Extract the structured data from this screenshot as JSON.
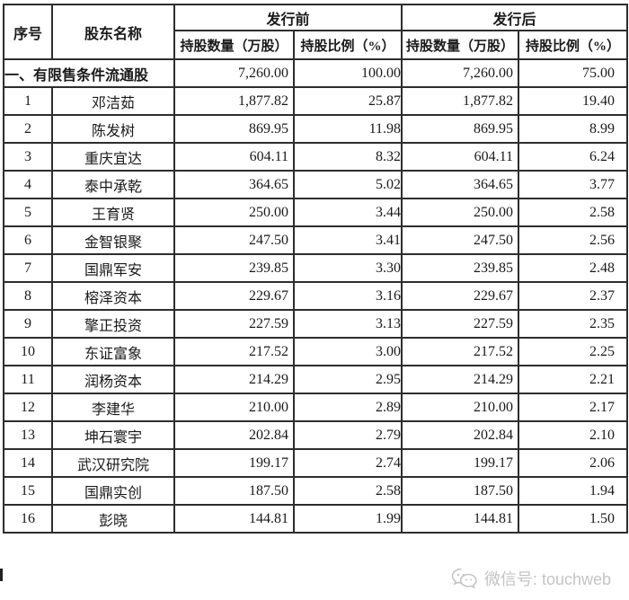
{
  "table": {
    "headers": {
      "index": "序号",
      "shareholder": "股东名称",
      "pre_group": "发行前",
      "post_group": "发行后",
      "qty": "持股数量（万股）",
      "pct": "持股比例（%）"
    },
    "section": {
      "label": "一、有限售条件流通股",
      "pre_qty": "7,260.00",
      "pre_pct": "100.00",
      "post_qty": "7,260.00",
      "post_pct": "75.00"
    },
    "rows": [
      {
        "no": "1",
        "name": "邓洁茹",
        "pre_qty": "1,877.82",
        "pre_pct": "25.87",
        "post_qty": "1,877.82",
        "post_pct": "19.40"
      },
      {
        "no": "2",
        "name": "陈发树",
        "pre_qty": "869.95",
        "pre_pct": "11.98",
        "post_qty": "869.95",
        "post_pct": "8.99"
      },
      {
        "no": "3",
        "name": "重庆宜达",
        "pre_qty": "604.11",
        "pre_pct": "8.32",
        "post_qty": "604.11",
        "post_pct": "6.24"
      },
      {
        "no": "4",
        "name": "泰中承乾",
        "pre_qty": "364.65",
        "pre_pct": "5.02",
        "post_qty": "364.65",
        "post_pct": "3.77"
      },
      {
        "no": "5",
        "name": "王育贤",
        "pre_qty": "250.00",
        "pre_pct": "3.44",
        "post_qty": "250.00",
        "post_pct": "2.58"
      },
      {
        "no": "6",
        "name": "金智银聚",
        "pre_qty": "247.50",
        "pre_pct": "3.41",
        "post_qty": "247.50",
        "post_pct": "2.56"
      },
      {
        "no": "7",
        "name": "国鼎军安",
        "pre_qty": "239.85",
        "pre_pct": "3.30",
        "post_qty": "239.85",
        "post_pct": "2.48"
      },
      {
        "no": "8",
        "name": "榕泽资本",
        "pre_qty": "229.67",
        "pre_pct": "3.16",
        "post_qty": "229.67",
        "post_pct": "2.37"
      },
      {
        "no": "9",
        "name": "擎正投资",
        "pre_qty": "227.59",
        "pre_pct": "3.13",
        "post_qty": "227.59",
        "post_pct": "2.35"
      },
      {
        "no": "10",
        "name": "东证富象",
        "pre_qty": "217.52",
        "pre_pct": "3.00",
        "post_qty": "217.52",
        "post_pct": "2.25"
      },
      {
        "no": "11",
        "name": "润杨资本",
        "pre_qty": "214.29",
        "pre_pct": "2.95",
        "post_qty": "214.29",
        "post_pct": "2.21"
      },
      {
        "no": "12",
        "name": "李建华",
        "pre_qty": "210.00",
        "pre_pct": "2.89",
        "post_qty": "210.00",
        "post_pct": "2.17"
      },
      {
        "no": "13",
        "name": "坤石寰宇",
        "pre_qty": "202.84",
        "pre_pct": "2.79",
        "post_qty": "202.84",
        "post_pct": "2.10"
      },
      {
        "no": "14",
        "name": "武汉研究院",
        "pre_qty": "199.17",
        "pre_pct": "2.74",
        "post_qty": "199.17",
        "post_pct": "2.06"
      },
      {
        "no": "15",
        "name": "国鼎实创",
        "pre_qty": "187.50",
        "pre_pct": "2.58",
        "post_qty": "187.50",
        "post_pct": "1.94"
      },
      {
        "no": "16",
        "name": "彭晓",
        "pre_qty": "144.81",
        "pre_pct": "1.99",
        "post_qty": "144.81",
        "post_pct": "1.50"
      }
    ]
  },
  "watermark": {
    "text": "微信号: touchweb",
    "icon": "wechat-icon",
    "color": "#c4c4c4"
  }
}
